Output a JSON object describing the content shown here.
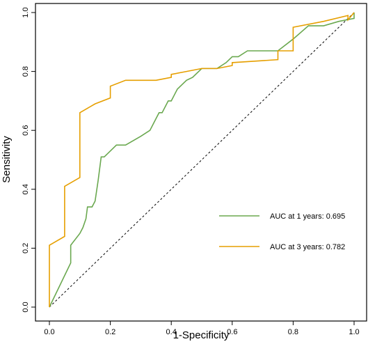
{
  "chart_data": {
    "type": "line",
    "title": "",
    "xlabel": "1-Specificity",
    "ylabel": "Sensitivity",
    "xlim": [
      0,
      1
    ],
    "ylim": [
      0,
      1
    ],
    "x_ticks": [
      0.0,
      0.2,
      0.4,
      0.6,
      0.8,
      1.0
    ],
    "y_ticks": [
      0.0,
      0.2,
      0.4,
      0.6,
      0.8,
      1.0
    ],
    "x_tick_labels": [
      "0.0",
      "0.2",
      "0.4",
      "0.6",
      "0.8",
      "1.0"
    ],
    "y_tick_labels": [
      "0.0",
      "0.2",
      "0.4",
      "0.6",
      "0.8",
      "1.0"
    ],
    "grid": false,
    "legend_position": "bottom-right",
    "reference_line": {
      "style": "dashed",
      "color": "#000000",
      "from": [
        0,
        0
      ],
      "to": [
        1,
        1
      ]
    },
    "series": [
      {
        "name": "AUC at 1 years: 0.695",
        "color": "#6aa84f",
        "x": [
          0.0,
          0.07,
          0.07,
          0.1,
          0.11,
          0.12,
          0.125,
          0.14,
          0.15,
          0.16,
          0.17,
          0.18,
          0.2,
          0.22,
          0.23,
          0.25,
          0.3,
          0.33,
          0.34,
          0.35,
          0.36,
          0.37,
          0.38,
          0.39,
          0.4,
          0.41,
          0.42,
          0.45,
          0.47,
          0.5,
          0.55,
          0.58,
          0.6,
          0.62,
          0.65,
          0.75,
          0.8,
          0.85,
          0.9,
          0.95,
          1.0,
          1.0
        ],
        "y": [
          0.0,
          0.15,
          0.21,
          0.25,
          0.27,
          0.3,
          0.34,
          0.34,
          0.36,
          0.43,
          0.51,
          0.51,
          0.53,
          0.55,
          0.55,
          0.55,
          0.58,
          0.6,
          0.62,
          0.64,
          0.66,
          0.66,
          0.68,
          0.7,
          0.7,
          0.72,
          0.74,
          0.77,
          0.78,
          0.81,
          0.81,
          0.83,
          0.85,
          0.85,
          0.87,
          0.87,
          0.91,
          0.955,
          0.955,
          0.97,
          0.98,
          1.0
        ]
      },
      {
        "name": "AUC at 3 years: 0.782",
        "color": "#e69f00",
        "x": [
          0.0,
          0.0,
          0.05,
          0.05,
          0.1,
          0.1,
          0.15,
          0.2,
          0.2,
          0.25,
          0.3,
          0.35,
          0.4,
          0.4,
          0.45,
          0.5,
          0.55,
          0.6,
          0.6,
          0.75,
          0.75,
          0.8,
          0.8,
          0.9,
          0.98,
          0.98,
          1.0
        ],
        "y": [
          0.0,
          0.21,
          0.24,
          0.41,
          0.44,
          0.66,
          0.69,
          0.71,
          0.75,
          0.77,
          0.77,
          0.77,
          0.78,
          0.79,
          0.8,
          0.81,
          0.81,
          0.82,
          0.83,
          0.84,
          0.87,
          0.87,
          0.95,
          0.97,
          0.99,
          0.975,
          1.0
        ]
      }
    ]
  }
}
